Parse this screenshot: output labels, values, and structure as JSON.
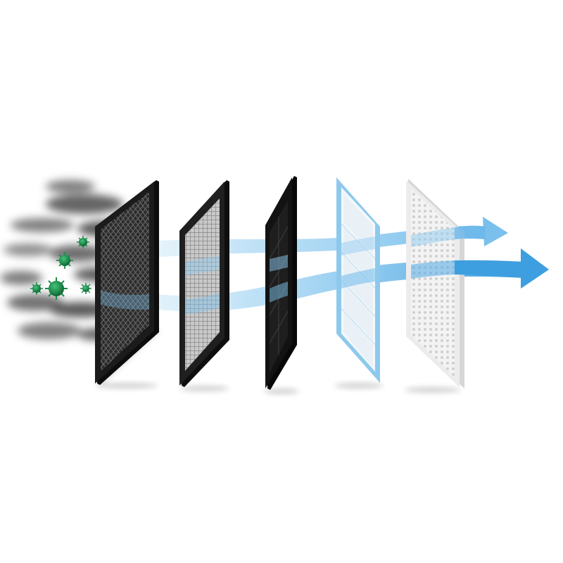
{
  "diagram": {
    "layers": [
      {
        "name": "black-mesh-prefilter",
        "frame_color": "#1b1b1b",
        "face_color": "#2a2a2a",
        "pattern": "diamond-mesh"
      },
      {
        "name": "grey-grid-filter",
        "frame_color": "#1f1f1f",
        "face_color": "#9a9a9a",
        "pattern": "fine-grid"
      },
      {
        "name": "carbon-filter",
        "frame_color": "#111111",
        "face_color": "#1e1e1e",
        "pattern": "panel-grid"
      },
      {
        "name": "hepa-filter",
        "frame_color": "#8ec9ec",
        "face_color": "#f3f8fb",
        "pattern": "pleats"
      },
      {
        "name": "white-perforated-filter",
        "frame_color": "#e3e3e3",
        "face_color": "#f4f4f4",
        "pattern": "perforated"
      }
    ],
    "airflow_color": "#4fb0e6",
    "particle_color": "#1f8a4c",
    "smoke_color": "#555555",
    "arrow_count": 2,
    "particle_count": 5
  }
}
